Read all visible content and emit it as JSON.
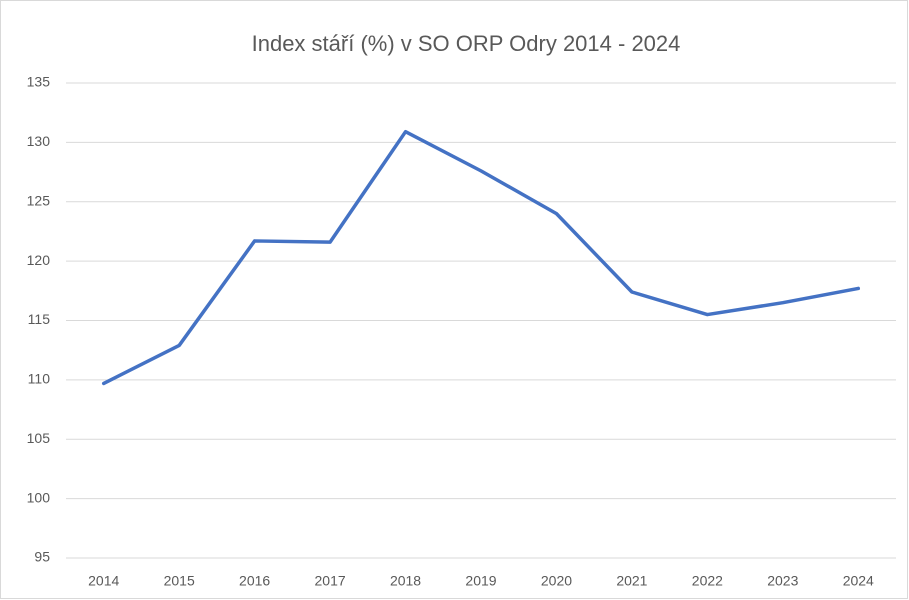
{
  "chart_data": {
    "type": "line",
    "title": "Index stáří (%) v SO ORP Odry 2014 - 2024",
    "categories": [
      "2014",
      "2015",
      "2016",
      "2017",
      "2018",
      "2019",
      "2020",
      "2021",
      "2022",
      "2023",
      "2024"
    ],
    "series": [
      {
        "name": "Index stáří (%)",
        "color": "#4472c4",
        "values": [
          109.7,
          112.9,
          121.7,
          121.6,
          130.9,
          127.6,
          124.0,
          117.4,
          115.5,
          116.5,
          117.7
        ]
      }
    ],
    "ylim": [
      95,
      135
    ],
    "yticks": [
      95,
      100,
      105,
      110,
      115,
      120,
      125,
      130,
      135
    ],
    "grid": true
  }
}
